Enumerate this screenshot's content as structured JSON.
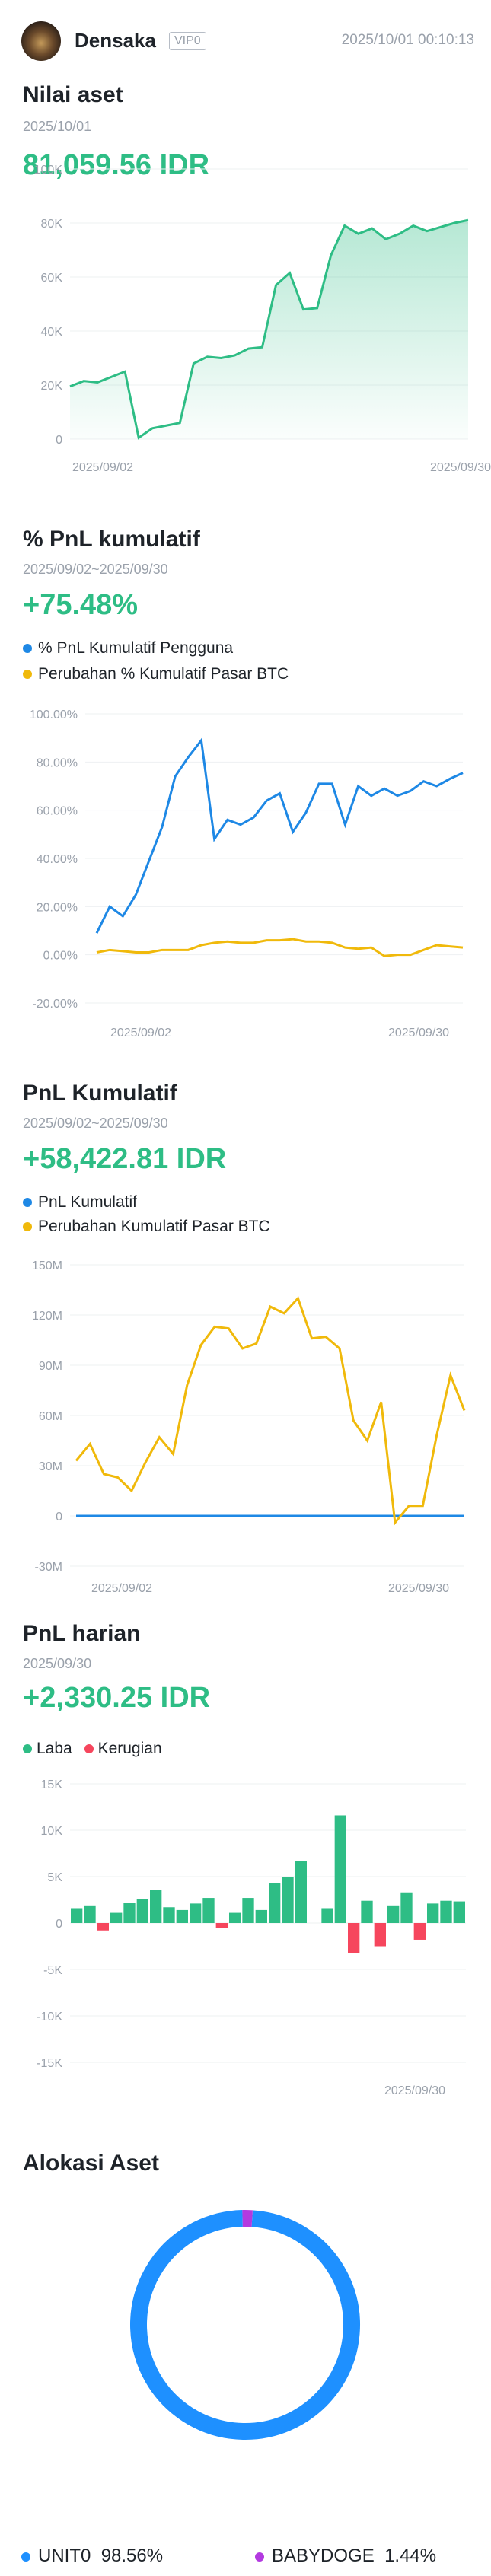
{
  "header": {
    "username": "Densaka",
    "vip": "VIP0",
    "timestamp": "2025/10/01 00:10:13"
  },
  "asset": {
    "title": "Nilai aset",
    "date": "2025/10/01",
    "value": "81,059.56 IDR",
    "chart_data": {
      "type": "area",
      "x": [
        "2025/09/01",
        "2025/09/02",
        "2025/09/03",
        "2025/09/04",
        "2025/09/05",
        "2025/09/06",
        "2025/09/07",
        "2025/09/08",
        "2025/09/09",
        "2025/09/10",
        "2025/09/11",
        "2025/09/12",
        "2025/09/13",
        "2025/09/14",
        "2025/09/15",
        "2025/09/16",
        "2025/09/17",
        "2025/09/18",
        "2025/09/19",
        "2025/09/20",
        "2025/09/21",
        "2025/09/22",
        "2025/09/23",
        "2025/09/24",
        "2025/09/25",
        "2025/09/26",
        "2025/09/27",
        "2025/09/28",
        "2025/09/29",
        "2025/09/30"
      ],
      "values": [
        19500,
        21500,
        21000,
        23000,
        25000,
        500,
        4000,
        5000,
        6000,
        28000,
        30500,
        30000,
        31000,
        33500,
        34000,
        57000,
        61500,
        48000,
        48500,
        68000,
        79000,
        76000,
        78000,
        74000,
        76000,
        79000,
        77000,
        78500,
        80000,
        81060
      ],
      "yticks": [
        "100K",
        "80K",
        "60K",
        "40K",
        "20K",
        "0"
      ],
      "ylim": [
        0,
        100000
      ],
      "xticks": [
        "2025/09/02",
        "2025/09/30"
      ],
      "color": "#2ebd85"
    }
  },
  "pnl_pct": {
    "title": "% PnL kumulatif",
    "range": "2025/09/02~2025/09/30",
    "value": "+75.48%",
    "legend": [
      "% PnL Kumulatif Pengguna",
      "Perubahan % Kumulatif Pasar BTC"
    ],
    "chart_data": {
      "type": "line",
      "x": [
        "2025/09/02",
        "2025/09/03",
        "2025/09/04",
        "2025/09/05",
        "2025/09/06",
        "2025/09/07",
        "2025/09/08",
        "2025/09/09",
        "2025/09/10",
        "2025/09/11",
        "2025/09/12",
        "2025/09/13",
        "2025/09/14",
        "2025/09/15",
        "2025/09/16",
        "2025/09/17",
        "2025/09/18",
        "2025/09/19",
        "2025/09/20",
        "2025/09/21",
        "2025/09/22",
        "2025/09/23",
        "2025/09/24",
        "2025/09/25",
        "2025/09/26",
        "2025/09/27",
        "2025/09/28",
        "2025/09/29",
        "2025/09/30"
      ],
      "series": [
        {
          "name": "% PnL Kumulatif Pengguna",
          "color": "#1e88e5",
          "values": [
            9,
            20,
            16,
            25,
            39,
            53,
            74,
            82,
            89,
            48,
            56,
            54,
            57,
            64,
            67,
            51,
            59,
            71,
            71,
            54,
            70,
            66,
            69,
            66,
            68,
            72,
            70,
            73,
            75.48
          ]
        },
        {
          "name": "Perubahan % Kumulatif Pasar BTC",
          "color": "#f0b90b",
          "values": [
            1,
            2,
            1.5,
            1,
            1,
            2,
            2,
            2,
            4,
            5,
            5.5,
            5,
            5,
            6,
            6,
            6.5,
            5.5,
            5.5,
            5,
            3,
            2.5,
            3,
            -0.5,
            0,
            0,
            2,
            4,
            3.5,
            3
          ]
        }
      ],
      "yticks": [
        "100.00%",
        "80.00%",
        "60.00%",
        "40.00%",
        "20.00%",
        "0.00%",
        "-20.00%"
      ],
      "ylim": [
        -20,
        100
      ],
      "xticks": [
        "2025/09/02",
        "2025/09/30"
      ]
    }
  },
  "pnl_idr": {
    "title": "PnL Kumulatif",
    "range": "2025/09/02~2025/09/30",
    "value": "+58,422.81 IDR",
    "legend": [
      "PnL Kumulatif",
      "Perubahan Kumulatif Pasar BTC"
    ],
    "chart_data": {
      "type": "line",
      "x": [
        "2025/09/02",
        "2025/09/03",
        "2025/09/04",
        "2025/09/05",
        "2025/09/06",
        "2025/09/07",
        "2025/09/08",
        "2025/09/09",
        "2025/09/10",
        "2025/09/11",
        "2025/09/12",
        "2025/09/13",
        "2025/09/14",
        "2025/09/15",
        "2025/09/16",
        "2025/09/17",
        "2025/09/18",
        "2025/09/19",
        "2025/09/20",
        "2025/09/21",
        "2025/09/22",
        "2025/09/23",
        "2025/09/24",
        "2025/09/25",
        "2025/09/26",
        "2025/09/27",
        "2025/09/28",
        "2025/09/29",
        "2025/09/30"
      ],
      "series": [
        {
          "name": "PnL Kumulatif",
          "color": "#1e88e5",
          "values": [
            0,
            0,
            0,
            0,
            0,
            0,
            0,
            0,
            0,
            0,
            0,
            0,
            0,
            0,
            0,
            0,
            0,
            0,
            0,
            0,
            0,
            0,
            0,
            0,
            0,
            0,
            0,
            0,
            0
          ]
        },
        {
          "name": "Perubahan Kumulatif Pasar BTC",
          "color": "#f0b90b",
          "values": [
            33,
            43,
            25,
            23,
            15,
            32,
            47,
            37,
            78,
            102,
            113,
            112,
            100,
            103,
            125,
            121,
            130,
            106,
            107,
            100,
            57,
            45,
            68,
            -4,
            6,
            6,
            48,
            84,
            63
          ]
        }
      ],
      "yticks": [
        "150M",
        "120M",
        "90M",
        "60M",
        "30M",
        "0",
        "-30M"
      ],
      "ylim": [
        -30,
        150
      ],
      "xticks": [
        "2025/09/02",
        "2025/09/30"
      ]
    }
  },
  "daily": {
    "title": "PnL harian",
    "date": "2025/09/30",
    "value": "+2,330.25 IDR",
    "legend": [
      "Laba",
      "Kerugian"
    ],
    "colors": {
      "profit": "#2ebd85",
      "loss": "#f6465d"
    },
    "chart_data": {
      "type": "bar",
      "x": [
        "2025/09/01",
        "2025/09/02",
        "2025/09/03",
        "2025/09/04",
        "2025/09/05",
        "2025/09/06",
        "2025/09/07",
        "2025/09/08",
        "2025/09/09",
        "2025/09/10",
        "2025/09/11",
        "2025/09/12",
        "2025/09/13",
        "2025/09/14",
        "2025/09/15",
        "2025/09/16",
        "2025/09/17",
        "2025/09/18",
        "2025/09/19",
        "2025/09/20",
        "2025/09/21",
        "2025/09/22",
        "2025/09/23",
        "2025/09/24",
        "2025/09/25",
        "2025/09/26",
        "2025/09/27",
        "2025/09/28",
        "2025/09/29",
        "2025/09/30"
      ],
      "values": [
        1600,
        1900,
        -800,
        1100,
        2200,
        2600,
        3600,
        1700,
        1400,
        2100,
        2700,
        -500,
        1100,
        2700,
        1400,
        4300,
        5000,
        6700,
        0,
        1600,
        11600,
        -3200,
        2400,
        -2500,
        1900,
        3300,
        -1800,
        2100,
        2400,
        2330
      ],
      "yticks": [
        "15K",
        "10K",
        "5K",
        "0",
        "-5K",
        "-10K",
        "-15K"
      ],
      "ylim": [
        -15000,
        15000
      ],
      "xticks": [
        "2025/09/30"
      ]
    }
  },
  "alloc": {
    "title": "Alokasi Aset",
    "chart_data": {
      "type": "pie",
      "labels": [
        "UNIT0",
        "BABYDOGE"
      ],
      "values": [
        98.56,
        1.44
      ],
      "colors": [
        "#1e90ff",
        "#b33ae0"
      ]
    },
    "legend": [
      {
        "name": "UNIT0",
        "pct": "98.56%"
      },
      {
        "name": "BABYDOGE",
        "pct": "1.44%"
      }
    ]
  }
}
